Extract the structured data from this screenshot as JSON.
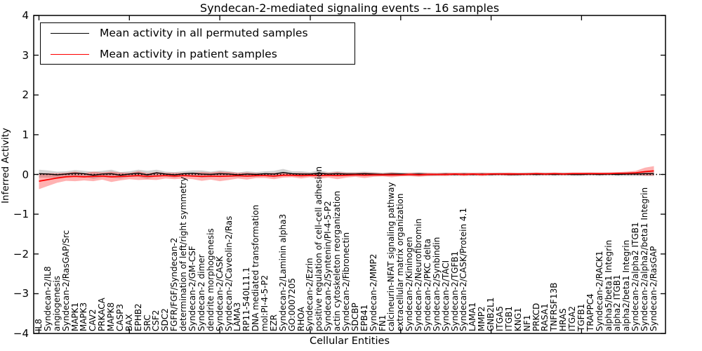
{
  "title": "Syndecan-2-mediated signaling events -- 16 samples",
  "legend": {
    "items": [
      {
        "label": "Mean activity in all permuted samples",
        "color": "#000000"
      },
      {
        "label": "Mean activity in patient samples",
        "color": "#ff0000"
      }
    ],
    "position": "upper left"
  },
  "colors": {
    "permuted_line": "#000000",
    "patient_line": "#ff0000",
    "permuted_band": "rgba(110,110,110,0.30)",
    "patient_band": "rgba(255,20,20,0.33)",
    "zero_line": "#000000",
    "frame": "#000000",
    "background": "#ffffff"
  },
  "chart_data": {
    "type": "line",
    "title": "Syndecan-2-mediated signaling events -- 16 samples",
    "xlabel": "Cellular Entities",
    "ylabel": "Inferred Activity",
    "ylim": [
      -4,
      4
    ],
    "yticks": [
      4,
      3,
      2,
      1,
      0,
      -1,
      -2,
      -3,
      -4
    ],
    "ytick_labels": [
      "4",
      "3",
      "2",
      "1",
      "0",
      "−1",
      "−2",
      "−3",
      "−4"
    ],
    "grid": false,
    "zero_reference_dotted_line": 0,
    "legend_position": "upper left",
    "categories": [
      "IL8",
      "Syndecan-2/IL8",
      "angiogenesis",
      "Syndecan-2/RasGAP/Src",
      "MAPK1",
      "MAPK3",
      "CAV2",
      "PRKACA",
      "MAPK8",
      "CASP3",
      "BAX",
      "EPHB2",
      "SRC",
      "CSF2",
      "SDC2",
      "FGFR/FGF/Syndecan-2",
      "determination of left/right symmetry",
      "Syndecan-2/GM-CSF",
      "Syndecan-2 dimer",
      "dendrite morphogenesis",
      "Syndecan-2/CASK",
      "Syndecan-2/Caveolin-2/Ras",
      "LAMA3",
      "RP11-540L11.1",
      "DNA mediated transformation",
      "mol:PI-4-5-P2",
      "EZR",
      "Syndecan-2/Laminin alpha3",
      "GO:0007205",
      "RHOA",
      "Syndecan-2/Ezrin",
      "positive regulation of cell-cell adhesion",
      "Syndecan-2/Syntenin/PI-4-5-P2",
      "actin cytoskeleton reorganization",
      "Syndecan-2/Fibronectin",
      "SDCBP",
      "EPB41",
      "Syndecan-2/MMP2",
      "FN1",
      "calcineurin-NFAT signaling pathway",
      "extracellular matrix organization",
      "Syndecan-2/Kininogen",
      "Syndecan-2/Neurofibromin",
      "Syndecan-2/PKC delta",
      "Syndecan-2/Synbindin",
      "Syndecan-2/TACI",
      "Syndecan-2/TGFB1",
      "Syndecan-2/CASK/Protein 4.1",
      "LAMA1",
      "MMP2",
      "GNB2L1",
      "ITGA5",
      "ITGB1",
      "KNG1",
      "NF1",
      "PRKCD",
      "RASA1",
      "TNFRSF13B",
      "HRAS",
      "ITGA2",
      "TGFB1",
      "TRAPPC4",
      "Syndecan-2/RACK1",
      "alpha5/beta1 Integrin",
      "alpha2 ITGB1",
      "alpha2/beta1 Integrin",
      "Syndecan-2/alpha2 ITGB1",
      "Syndecan-2/alpha2/beta1 Integrin",
      "Syndecan-2/RasGAP"
    ],
    "series": [
      {
        "name": "Mean activity in all permuted samples",
        "color": "#000000",
        "band_color": "rgba(110,110,110,0.30)",
        "values": [
          0.02,
          0.01,
          -0.01,
          0.01,
          0.03,
          0.02,
          -0.02,
          0.01,
          0.02,
          -0.02,
          0.01,
          0.03,
          -0.01,
          0.04,
          0.01,
          -0.01,
          0.02,
          0.03,
          0.01,
          0.0,
          0.02,
          0.01,
          -0.01,
          0.01,
          0.0,
          0.02,
          0.01,
          0.05,
          0.02,
          0.01,
          0.01,
          0.03,
          0.01,
          0.02,
          0.01,
          0.01,
          0.02,
          0.01,
          0.0,
          0.01,
          0.01,
          0.0,
          0.01,
          0.0,
          0.0,
          0.01,
          0.0,
          0.01,
          0.0,
          0.01,
          0.0,
          0.01,
          0.0,
          0.0,
          0.01,
          0.0,
          0.01,
          0.0,
          0.01,
          0.0,
          0.0,
          0.01,
          0.0,
          0.01,
          0.0,
          0.01,
          0.01,
          0.02,
          0.02
        ],
        "band_halfwidth": [
          0.1,
          0.09,
          0.08,
          0.07,
          0.08,
          0.07,
          0.09,
          0.08,
          0.1,
          0.08,
          0.07,
          0.09,
          0.1,
          0.08,
          0.06,
          0.07,
          0.06,
          0.07,
          0.09,
          0.07,
          0.08,
          0.07,
          0.06,
          0.07,
          0.06,
          0.06,
          0.08,
          0.09,
          0.06,
          0.07,
          0.05,
          0.07,
          0.05,
          0.06,
          0.05,
          0.05,
          0.05,
          0.05,
          0.04,
          0.05,
          0.04,
          0.04,
          0.05,
          0.04,
          0.04,
          0.04,
          0.04,
          0.04,
          0.04,
          0.04,
          0.04,
          0.04,
          0.04,
          0.04,
          0.04,
          0.04,
          0.04,
          0.04,
          0.04,
          0.04,
          0.04,
          0.04,
          0.04,
          0.04,
          0.04,
          0.05,
          0.05,
          0.06,
          0.06
        ]
      },
      {
        "name": "Mean activity in patient samples",
        "color": "#ff0000",
        "band_color": "rgba(255,20,20,0.33)",
        "values": [
          -0.17,
          -0.13,
          -0.09,
          -0.06,
          -0.05,
          -0.06,
          -0.05,
          -0.04,
          -0.06,
          -0.05,
          -0.04,
          -0.03,
          -0.05,
          -0.04,
          -0.03,
          -0.04,
          -0.03,
          -0.04,
          -0.05,
          -0.04,
          -0.05,
          -0.04,
          -0.03,
          -0.04,
          -0.03,
          -0.03,
          -0.04,
          -0.02,
          -0.02,
          -0.03,
          -0.02,
          -0.03,
          -0.02,
          -0.03,
          -0.02,
          -0.01,
          -0.02,
          -0.01,
          -0.01,
          -0.01,
          -0.01,
          0.0,
          -0.01,
          0.0,
          0.0,
          0.0,
          0.01,
          0.0,
          0.01,
          0.0,
          0.01,
          0.01,
          0.01,
          0.01,
          0.01,
          0.02,
          0.01,
          0.02,
          0.01,
          0.02,
          0.02,
          0.02,
          0.02,
          0.02,
          0.03,
          0.03,
          0.04,
          0.07,
          0.09
        ],
        "band_halfwidth": [
          0.2,
          0.16,
          0.12,
          0.1,
          0.12,
          0.09,
          0.12,
          0.09,
          0.13,
          0.1,
          0.08,
          0.11,
          0.08,
          0.1,
          0.07,
          0.08,
          0.07,
          0.08,
          0.11,
          0.09,
          0.12,
          0.1,
          0.07,
          0.09,
          0.06,
          0.06,
          0.08,
          0.06,
          0.05,
          0.07,
          0.05,
          0.08,
          0.06,
          0.09,
          0.06,
          0.05,
          0.07,
          0.05,
          0.04,
          0.06,
          0.04,
          0.04,
          0.05,
          0.04,
          0.03,
          0.04,
          0.03,
          0.04,
          0.03,
          0.04,
          0.03,
          0.03,
          0.04,
          0.03,
          0.03,
          0.03,
          0.03,
          0.03,
          0.03,
          0.03,
          0.03,
          0.03,
          0.03,
          0.03,
          0.03,
          0.04,
          0.05,
          0.1,
          0.12
        ]
      }
    ]
  }
}
